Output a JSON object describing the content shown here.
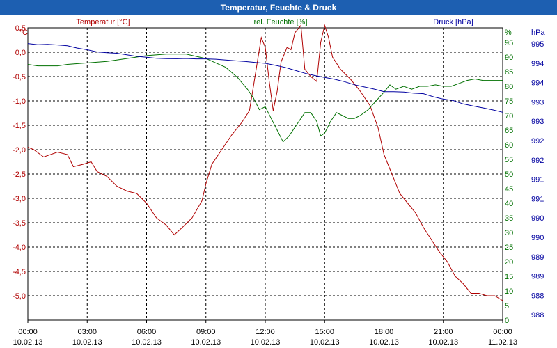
{
  "window": {
    "title": "Temperatur, Feuchte & Druck"
  },
  "colors": {
    "temperature": "#b00000",
    "humidity": "#007000",
    "pressure": "#0000a0",
    "grid": "#000000",
    "titlebar": "#1d5fb1"
  },
  "chart_data": {
    "type": "line",
    "title": "Temperatur, Feuchte & Druck",
    "x_ticks": [
      {
        "h": 0,
        "time": "00:00",
        "date": "10.02.13"
      },
      {
        "h": 3,
        "time": "03:00",
        "date": "10.02.13"
      },
      {
        "h": 6,
        "time": "06:00",
        "date": "10.02.13"
      },
      {
        "h": 9,
        "time": "09:00",
        "date": "10.02.13"
      },
      {
        "h": 12,
        "time": "12:00",
        "date": "10.02.13"
      },
      {
        "h": 15,
        "time": "15:00",
        "date": "10.02.13"
      },
      {
        "h": 18,
        "time": "18:00",
        "date": "10.02.13"
      },
      {
        "h": 21,
        "time": "21:00",
        "date": "10.02.13"
      },
      {
        "h": 24,
        "time": "00:00",
        "date": "11.02.13"
      }
    ],
    "xlim": [
      0,
      24
    ],
    "axes": {
      "temperature": {
        "label": "Temperatur [°C]",
        "unit": "°C",
        "ylim": [
          -5.5,
          0.5
        ],
        "ticks": [
          "0,5",
          "0,0",
          "-0,5",
          "-1,0",
          "-1,5",
          "-2,0",
          "-2,5",
          "-3,0",
          "-3,5",
          "-4,0",
          "-4,5",
          "-5,0"
        ]
      },
      "humidity": {
        "label": "rel. Feuchte [%]",
        "unit": "%",
        "ylim": [
          0,
          100
        ],
        "ticks": [
          "95",
          "90",
          "85",
          "80",
          "75",
          "70",
          "65",
          "60",
          "55",
          "50",
          "45",
          "40",
          "35",
          "30",
          "25",
          "20",
          "15",
          "10",
          "5",
          "0"
        ]
      },
      "pressure": {
        "label": "Druck [hPa]",
        "unit": "hPa",
        "ticks": [
          "995",
          "994",
          "994",
          "993",
          "993",
          "992",
          "992",
          "991",
          "991",
          "990",
          "990",
          "989",
          "989",
          "988",
          "988"
        ]
      }
    },
    "series": [
      {
        "name": "Temperatur",
        "axis": "temperature",
        "points": [
          [
            0,
            -1.95
          ],
          [
            0.3,
            -2.0
          ],
          [
            0.8,
            -2.15
          ],
          [
            1.5,
            -2.05
          ],
          [
            2.0,
            -2.1
          ],
          [
            2.3,
            -2.35
          ],
          [
            2.8,
            -2.3
          ],
          [
            3.2,
            -2.25
          ],
          [
            3.5,
            -2.45
          ],
          [
            4.0,
            -2.55
          ],
          [
            4.5,
            -2.75
          ],
          [
            5.0,
            -2.85
          ],
          [
            5.5,
            -2.9
          ],
          [
            6.0,
            -3.1
          ],
          [
            6.5,
            -3.4
          ],
          [
            7.0,
            -3.55
          ],
          [
            7.4,
            -3.75
          ],
          [
            7.8,
            -3.6
          ],
          [
            8.3,
            -3.4
          ],
          [
            8.8,
            -3.05
          ],
          [
            9.0,
            -2.7
          ],
          [
            9.3,
            -2.3
          ],
          [
            9.8,
            -2.0
          ],
          [
            10.3,
            -1.7
          ],
          [
            10.8,
            -1.45
          ],
          [
            11.2,
            -1.2
          ],
          [
            11.4,
            -0.7
          ],
          [
            11.6,
            -0.2
          ],
          [
            11.8,
            0.3
          ],
          [
            12.0,
            0.1
          ],
          [
            12.2,
            -0.6
          ],
          [
            12.4,
            -1.2
          ],
          [
            12.6,
            -0.8
          ],
          [
            12.8,
            -0.2
          ],
          [
            13.1,
            0.1
          ],
          [
            13.3,
            0.05
          ],
          [
            13.5,
            0.4
          ],
          [
            13.8,
            0.55
          ],
          [
            14.0,
            -0.35
          ],
          [
            14.3,
            -0.5
          ],
          [
            14.6,
            -0.6
          ],
          [
            14.8,
            0.2
          ],
          [
            15.0,
            0.55
          ],
          [
            15.2,
            0.3
          ],
          [
            15.4,
            -0.1
          ],
          [
            15.8,
            -0.35
          ],
          [
            16.3,
            -0.55
          ],
          [
            16.8,
            -0.8
          ],
          [
            17.3,
            -1.1
          ],
          [
            17.7,
            -1.55
          ],
          [
            18.0,
            -2.1
          ],
          [
            18.4,
            -2.5
          ],
          [
            18.8,
            -2.9
          ],
          [
            19.2,
            -3.1
          ],
          [
            19.6,
            -3.3
          ],
          [
            20.0,
            -3.6
          ],
          [
            20.4,
            -3.85
          ],
          [
            20.8,
            -4.1
          ],
          [
            21.2,
            -4.3
          ],
          [
            21.6,
            -4.6
          ],
          [
            22.0,
            -4.75
          ],
          [
            22.4,
            -4.95
          ],
          [
            22.8,
            -4.95
          ],
          [
            23.2,
            -5.0
          ],
          [
            23.6,
            -5.0
          ],
          [
            24.0,
            -5.1
          ]
        ]
      },
      {
        "name": "rel. Feuchte",
        "axis": "humidity",
        "points": [
          [
            0,
            87.5
          ],
          [
            0.5,
            87
          ],
          [
            1.0,
            87
          ],
          [
            1.5,
            87
          ],
          [
            2.0,
            87.5
          ],
          [
            3.0,
            88
          ],
          [
            4.0,
            88.5
          ],
          [
            5.0,
            89.5
          ],
          [
            6.0,
            90.5
          ],
          [
            7.0,
            91
          ],
          [
            8.0,
            91
          ],
          [
            9.0,
            89.5
          ],
          [
            9.5,
            88
          ],
          [
            10.0,
            86.5
          ],
          [
            10.6,
            83
          ],
          [
            11.1,
            79
          ],
          [
            11.4,
            76
          ],
          [
            11.7,
            72
          ],
          [
            12.0,
            73
          ],
          [
            12.3,
            69
          ],
          [
            12.6,
            65
          ],
          [
            12.9,
            61
          ],
          [
            13.2,
            63
          ],
          [
            13.6,
            67
          ],
          [
            14.0,
            71
          ],
          [
            14.3,
            71
          ],
          [
            14.6,
            68
          ],
          [
            14.8,
            63
          ],
          [
            15.0,
            64
          ],
          [
            15.3,
            68
          ],
          [
            15.6,
            71
          ],
          [
            15.9,
            70
          ],
          [
            16.2,
            69
          ],
          [
            16.5,
            69
          ],
          [
            16.8,
            70
          ],
          [
            17.2,
            72
          ],
          [
            17.6,
            75
          ],
          [
            18.0,
            78
          ],
          [
            18.3,
            80.5
          ],
          [
            18.6,
            79
          ],
          [
            19.0,
            80
          ],
          [
            19.4,
            79
          ],
          [
            19.8,
            80
          ],
          [
            20.2,
            80
          ],
          [
            20.6,
            80.5
          ],
          [
            21.0,
            80
          ],
          [
            21.4,
            80
          ],
          [
            21.8,
            81
          ],
          [
            22.2,
            82
          ],
          [
            22.6,
            82.5
          ],
          [
            23.0,
            82
          ],
          [
            23.4,
            82
          ],
          [
            24.0,
            82
          ]
        ]
      },
      {
        "name": "Druck",
        "axis": "pressure",
        "points": [
          [
            0,
            0.508
          ],
          [
            0.5,
            0.478
          ],
          [
            1.0,
            0.487
          ],
          [
            1.5,
            0.471
          ],
          [
            2.0,
            0.449
          ],
          [
            2.5,
            0.39
          ],
          [
            3.0,
            0.348
          ],
          [
            3.5,
            0.292
          ],
          [
            4.0,
            0.271
          ],
          [
            4.5,
            0.258
          ],
          [
            5.0,
            0.218
          ],
          [
            5.5,
            0.176
          ],
          [
            6.0,
            0.152
          ],
          [
            6.5,
            0.128
          ],
          [
            7.0,
            0.118
          ],
          [
            7.5,
            0.115
          ],
          [
            8.0,
            0.122
          ],
          [
            8.5,
            0.111
          ],
          [
            9.0,
            0.112
          ],
          [
            9.5,
            0.102
          ],
          [
            10.0,
            0.082
          ],
          [
            10.5,
            0.062
          ],
          [
            11.0,
            0.044
          ],
          [
            11.5,
            0.02
          ],
          [
            12.0,
            -0.004
          ],
          [
            12.5,
            -0.052
          ],
          [
            13.0,
            -0.108
          ],
          [
            13.5,
            -0.183
          ],
          [
            14.0,
            -0.259
          ],
          [
            14.5,
            -0.319
          ],
          [
            15.0,
            -0.367
          ],
          [
            15.5,
            -0.416
          ],
          [
            16.0,
            -0.476
          ],
          [
            16.5,
            -0.555
          ],
          [
            17.0,
            -0.614
          ],
          [
            17.5,
            -0.669
          ],
          [
            18.0,
            -0.735
          ],
          [
            18.5,
            -0.738
          ],
          [
            19.0,
            -0.746
          ],
          [
            19.5,
            -0.776
          ],
          [
            20.0,
            -0.788
          ],
          [
            20.5,
            -0.867
          ],
          [
            21.0,
            -0.928
          ],
          [
            21.5,
            -0.965
          ],
          [
            22.0,
            -1.052
          ],
          [
            22.5,
            -1.106
          ],
          [
            23.0,
            -1.155
          ],
          [
            23.5,
            -1.206
          ],
          [
            24.0,
            -1.268
          ]
        ]
      }
    ]
  }
}
